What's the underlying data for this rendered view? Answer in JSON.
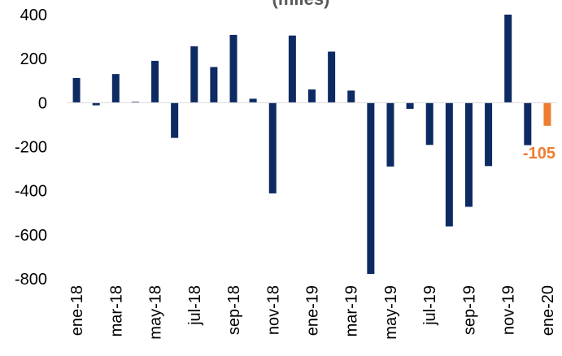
{
  "chart_data": {
    "type": "bar",
    "title": "(miles)",
    "xlabel": "",
    "ylabel": "",
    "ylim": [
      -800,
      400
    ],
    "yticks": [
      "-800",
      "-600",
      "-400",
      "-200",
      "0",
      "200",
      "400"
    ],
    "grid": false,
    "legend": "none",
    "categories": [
      "ene-18",
      "feb-18",
      "mar-18",
      "abr-18",
      "may-18",
      "jun-18",
      "jul-18",
      "ago-18",
      "sep-18",
      "oct-18",
      "nov-18",
      "dic-18",
      "ene-19",
      "feb-19",
      "mar-19",
      "abr-19",
      "may-19",
      "jun-19",
      "jul-19",
      "ago-19",
      "sep-19",
      "oct-19",
      "nov-19",
      "dic-19",
      "ene-20"
    ],
    "tick_labels": [
      "ene-18",
      "",
      "mar-18",
      "",
      "may-18",
      "",
      "jul-18",
      "",
      "sep-18",
      "",
      "nov-18",
      "",
      "ene-19",
      "",
      "mar-19",
      "",
      "may-19",
      "",
      "jul-19",
      "",
      "sep-19",
      "",
      "nov-19",
      "",
      "ene-20"
    ],
    "values": [
      112,
      -12,
      130,
      4,
      190,
      -160,
      256,
      162,
      308,
      18,
      -412,
      305,
      60,
      232,
      55,
      -778,
      -290,
      -28,
      -192,
      -562,
      -473,
      -288,
      400,
      -193,
      -105
    ],
    "colors": {
      "bar": "#0d2a63",
      "highlight": "#ed7d31"
    },
    "highlight_index": 24,
    "data_labels": [
      {
        "index": 24,
        "text": "-105"
      }
    ]
  }
}
